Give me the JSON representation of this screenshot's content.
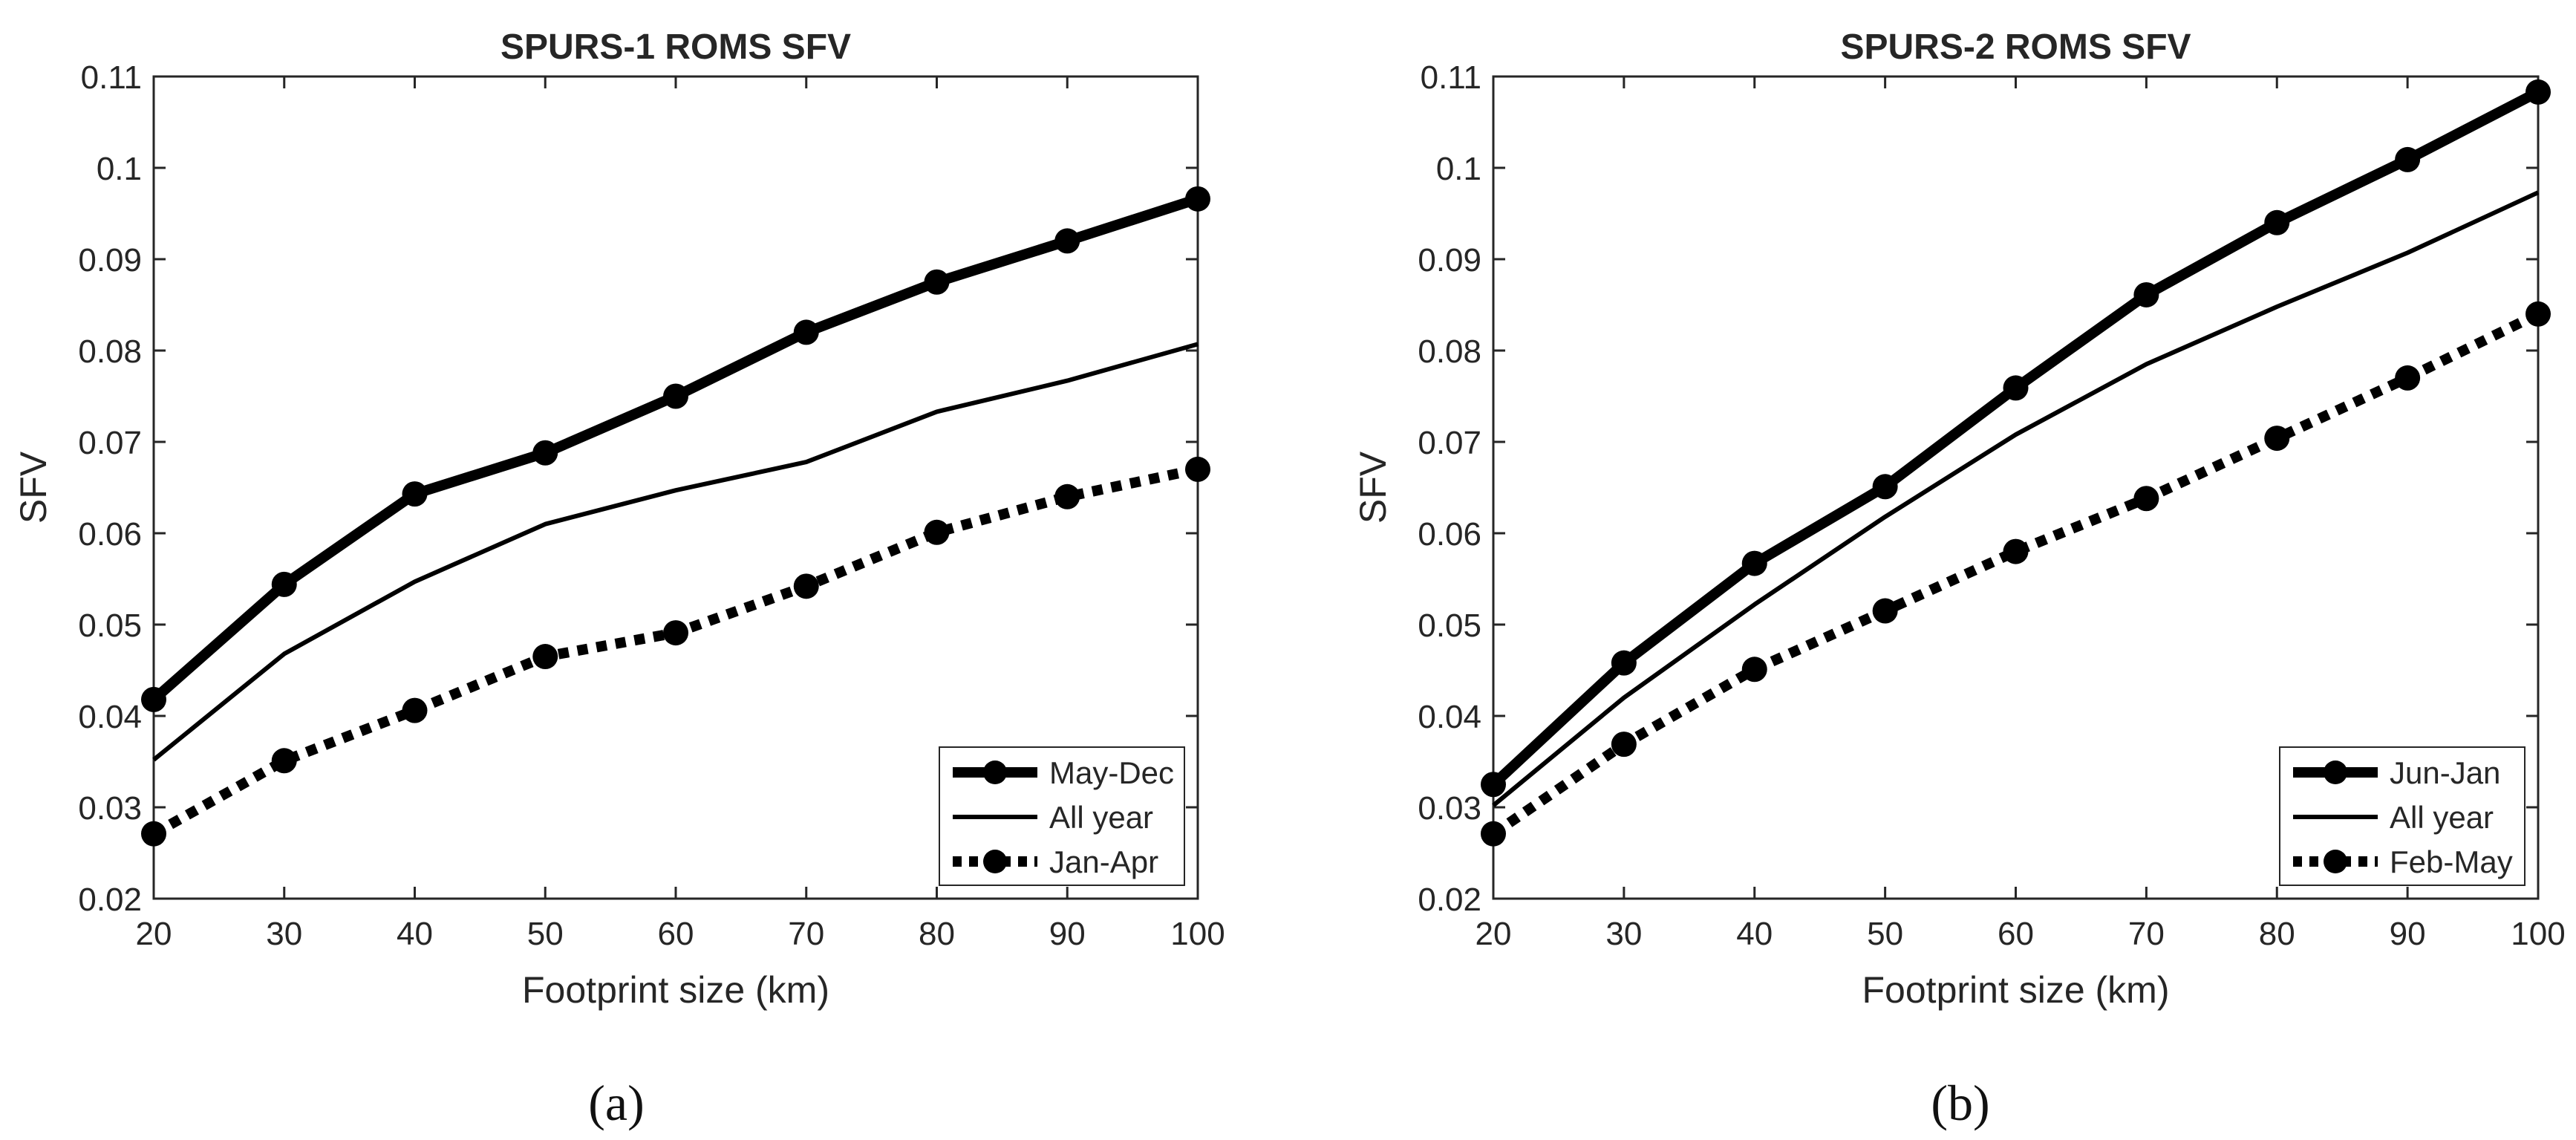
{
  "chart_data": [
    {
      "type": "line",
      "panel_label": "(a)",
      "title": "SPURS-1 ROMS SFV",
      "xlabel": "Footprint size (km)",
      "ylabel": "SFV",
      "xlim": [
        20,
        100
      ],
      "ylim": [
        0.02,
        0.11
      ],
      "xticks": [
        "20",
        "30",
        "40",
        "50",
        "60",
        "70",
        "80",
        "90",
        "100"
      ],
      "yticks": [
        "0.02",
        "0.03",
        "0.04",
        "0.05",
        "0.06",
        "0.07",
        "0.08",
        "0.09",
        "0.1",
        "0.11"
      ],
      "grid": false,
      "legend_position": "bottom-right",
      "x": [
        20,
        30,
        40,
        50,
        60,
        70,
        80,
        90,
        100
      ],
      "series": [
        {
          "name": "May-Dec",
          "style": "thick-solid-markers",
          "values": [
            0.0418,
            0.0544,
            0.0643,
            0.0688,
            0.075,
            0.082,
            0.0875,
            0.092,
            0.0966
          ]
        },
        {
          "name": "All year",
          "style": "thin-solid",
          "values": [
            0.0352,
            0.0468,
            0.0547,
            0.061,
            0.0647,
            0.0678,
            0.0733,
            0.0767,
            0.0807
          ]
        },
        {
          "name": "Jan-Apr",
          "style": "dotted-markers",
          "values": [
            0.0271,
            0.0351,
            0.0406,
            0.0465,
            0.0491,
            0.0542,
            0.0601,
            0.064,
            0.067
          ]
        }
      ]
    },
    {
      "type": "line",
      "panel_label": "(b)",
      "title": "SPURS-2 ROMS SFV",
      "xlabel": "Footprint size (km)",
      "ylabel": "SFV",
      "xlim": [
        20,
        100
      ],
      "ylim": [
        0.02,
        0.11
      ],
      "xticks": [
        "20",
        "30",
        "40",
        "50",
        "60",
        "70",
        "80",
        "90",
        "100"
      ],
      "yticks": [
        "0.02",
        "0.03",
        "0.04",
        "0.05",
        "0.06",
        "0.07",
        "0.08",
        "0.09",
        "0.1",
        "0.11"
      ],
      "grid": false,
      "legend_position": "bottom-right",
      "x": [
        20,
        30,
        40,
        50,
        60,
        70,
        80,
        90,
        100
      ],
      "series": [
        {
          "name": "Jun-Jan",
          "style": "thick-solid-markers",
          "values": [
            0.0325,
            0.0458,
            0.0567,
            0.0651,
            0.0759,
            0.0861,
            0.094,
            0.1009,
            0.1083
          ]
        },
        {
          "name": "All year",
          "style": "thin-solid",
          "values": [
            0.0302,
            0.042,
            0.0522,
            0.0618,
            0.0708,
            0.0785,
            0.0848,
            0.0907,
            0.0973
          ]
        },
        {
          "name": "Feb-May",
          "style": "dotted-markers",
          "values": [
            0.0271,
            0.0369,
            0.0451,
            0.0515,
            0.058,
            0.0638,
            0.0704,
            0.077,
            0.084
          ]
        }
      ]
    }
  ],
  "colors": {
    "line": "#000000",
    "axis": "#262626",
    "background": "#ffffff"
  }
}
